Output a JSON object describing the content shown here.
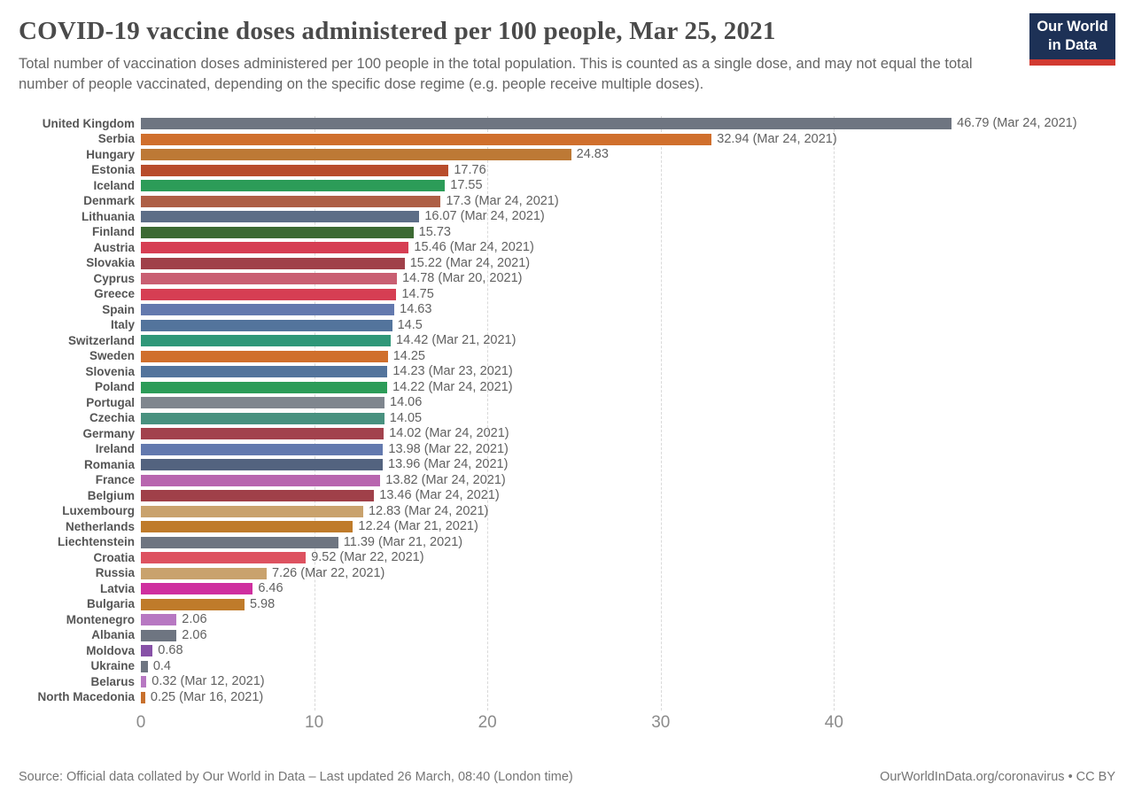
{
  "header": {
    "title": "COVID-19 vaccine doses administered per 100 people, Mar 25, 2021",
    "subtitle": "Total number of vaccination doses administered per 100 people in the total population. This is counted as a single dose, and may not equal the total number of people vaccinated, depending on the specific dose regime (e.g. people receive multiple doses).",
    "logo": {
      "line1": "Our World",
      "line2": "in Data",
      "bg_color": "#1d3156",
      "strip_color": "#d23a31"
    }
  },
  "footer": {
    "source": "Source: Official data collated by Our World in Data – Last updated 26 March, 08:40 (London time)",
    "link": "OurWorldInData.org/coronavirus • CC BY"
  },
  "chart_data": {
    "type": "bar",
    "orientation": "horizontal",
    "title": "COVID-19 vaccine doses administered per 100 people, Mar 25, 2021",
    "xlabel": "",
    "ylabel": "",
    "x_ticks": [
      0,
      10,
      20,
      30,
      40
    ],
    "x_max": 56.7,
    "grid": "vertical-dashed",
    "legend": "none",
    "rows": [
      {
        "country": "United Kingdom",
        "value": 46.79,
        "label": "46.79 (Mar 24, 2021)",
        "color": "#6e7581"
      },
      {
        "country": "Serbia",
        "value": 32.94,
        "label": "32.94 (Mar 24, 2021)",
        "color": "#d06f2c"
      },
      {
        "country": "Hungary",
        "value": 24.83,
        "label": "24.83",
        "color": "#bd7935"
      },
      {
        "country": "Estonia",
        "value": 17.76,
        "label": "17.76",
        "color": "#b84c2b"
      },
      {
        "country": "Iceland",
        "value": 17.55,
        "label": "17.55",
        "color": "#2c9c58"
      },
      {
        "country": "Denmark",
        "value": 17.3,
        "label": "17.3 (Mar 24, 2021)",
        "color": "#ae5f45"
      },
      {
        "country": "Lithuania",
        "value": 16.07,
        "label": "16.07 (Mar 24, 2021)",
        "color": "#5d6e87"
      },
      {
        "country": "Finland",
        "value": 15.73,
        "label": "15.73",
        "color": "#3c6a33"
      },
      {
        "country": "Austria",
        "value": 15.46,
        "label": "15.46 (Mar 24, 2021)",
        "color": "#d63e53"
      },
      {
        "country": "Slovakia",
        "value": 15.22,
        "label": "15.22 (Mar 24, 2021)",
        "color": "#a04049"
      },
      {
        "country": "Cyprus",
        "value": 14.78,
        "label": "14.78 (Mar 20, 2021)",
        "color": "#c95f72"
      },
      {
        "country": "Greece",
        "value": 14.75,
        "label": "14.75",
        "color": "#d63e53"
      },
      {
        "country": "Spain",
        "value": 14.63,
        "label": "14.63",
        "color": "#6379ae"
      },
      {
        "country": "Italy",
        "value": 14.5,
        "label": "14.5",
        "color": "#53749c"
      },
      {
        "country": "Switzerland",
        "value": 14.42,
        "label": "14.42 (Mar 21, 2021)",
        "color": "#2f9778"
      },
      {
        "country": "Sweden",
        "value": 14.25,
        "label": "14.25",
        "color": "#d06f2c"
      },
      {
        "country": "Slovenia",
        "value": 14.23,
        "label": "14.23 (Mar 23, 2021)",
        "color": "#53749c"
      },
      {
        "country": "Poland",
        "value": 14.22,
        "label": "14.22 (Mar 24, 2021)",
        "color": "#2c9c58"
      },
      {
        "country": "Portugal",
        "value": 14.06,
        "label": "14.06",
        "color": "#7f868e"
      },
      {
        "country": "Czechia",
        "value": 14.05,
        "label": "14.05",
        "color": "#48917f"
      },
      {
        "country": "Germany",
        "value": 14.02,
        "label": "14.02 (Mar 24, 2021)",
        "color": "#a2424d"
      },
      {
        "country": "Ireland",
        "value": 13.98,
        "label": "13.98 (Mar 22, 2021)",
        "color": "#6379ae"
      },
      {
        "country": "Romania",
        "value": 13.96,
        "label": "13.96 (Mar 24, 2021)",
        "color": "#53637f"
      },
      {
        "country": "France",
        "value": 13.82,
        "label": "13.82 (Mar 24, 2021)",
        "color": "#b865af"
      },
      {
        "country": "Belgium",
        "value": 13.46,
        "label": "13.46 (Mar 24, 2021)",
        "color": "#a04049"
      },
      {
        "country": "Luxembourg",
        "value": 12.83,
        "label": "12.83 (Mar 24, 2021)",
        "color": "#c9a26d"
      },
      {
        "country": "Netherlands",
        "value": 12.24,
        "label": "12.24 (Mar 21, 2021)",
        "color": "#bf7b2a"
      },
      {
        "country": "Liechtenstein",
        "value": 11.39,
        "label": "11.39 (Mar 21, 2021)",
        "color": "#6e7581"
      },
      {
        "country": "Croatia",
        "value": 9.52,
        "label": "9.52 (Mar 22, 2021)",
        "color": "#dd5260"
      },
      {
        "country": "Russia",
        "value": 7.26,
        "label": "7.26 (Mar 22, 2021)",
        "color": "#c9a26d"
      },
      {
        "country": "Latvia",
        "value": 6.46,
        "label": "6.46",
        "color": "#cf2f9f"
      },
      {
        "country": "Bulgaria",
        "value": 5.98,
        "label": "5.98",
        "color": "#bf7b2a"
      },
      {
        "country": "Montenegro",
        "value": 2.06,
        "label": "2.06",
        "color": "#b778c2"
      },
      {
        "country": "Albania",
        "value": 2.06,
        "label": "2.06",
        "color": "#6e7581"
      },
      {
        "country": "Moldova",
        "value": 0.68,
        "label": "0.68",
        "color": "#8751a7"
      },
      {
        "country": "Ukraine",
        "value": 0.4,
        "label": "0.4",
        "color": "#6e7581"
      },
      {
        "country": "Belarus",
        "value": 0.32,
        "label": "0.32 (Mar 12, 2021)",
        "color": "#b778c2"
      },
      {
        "country": "North Macedonia",
        "value": 0.25,
        "label": "0.25 (Mar 16, 2021)",
        "color": "#c8702d"
      }
    ]
  }
}
